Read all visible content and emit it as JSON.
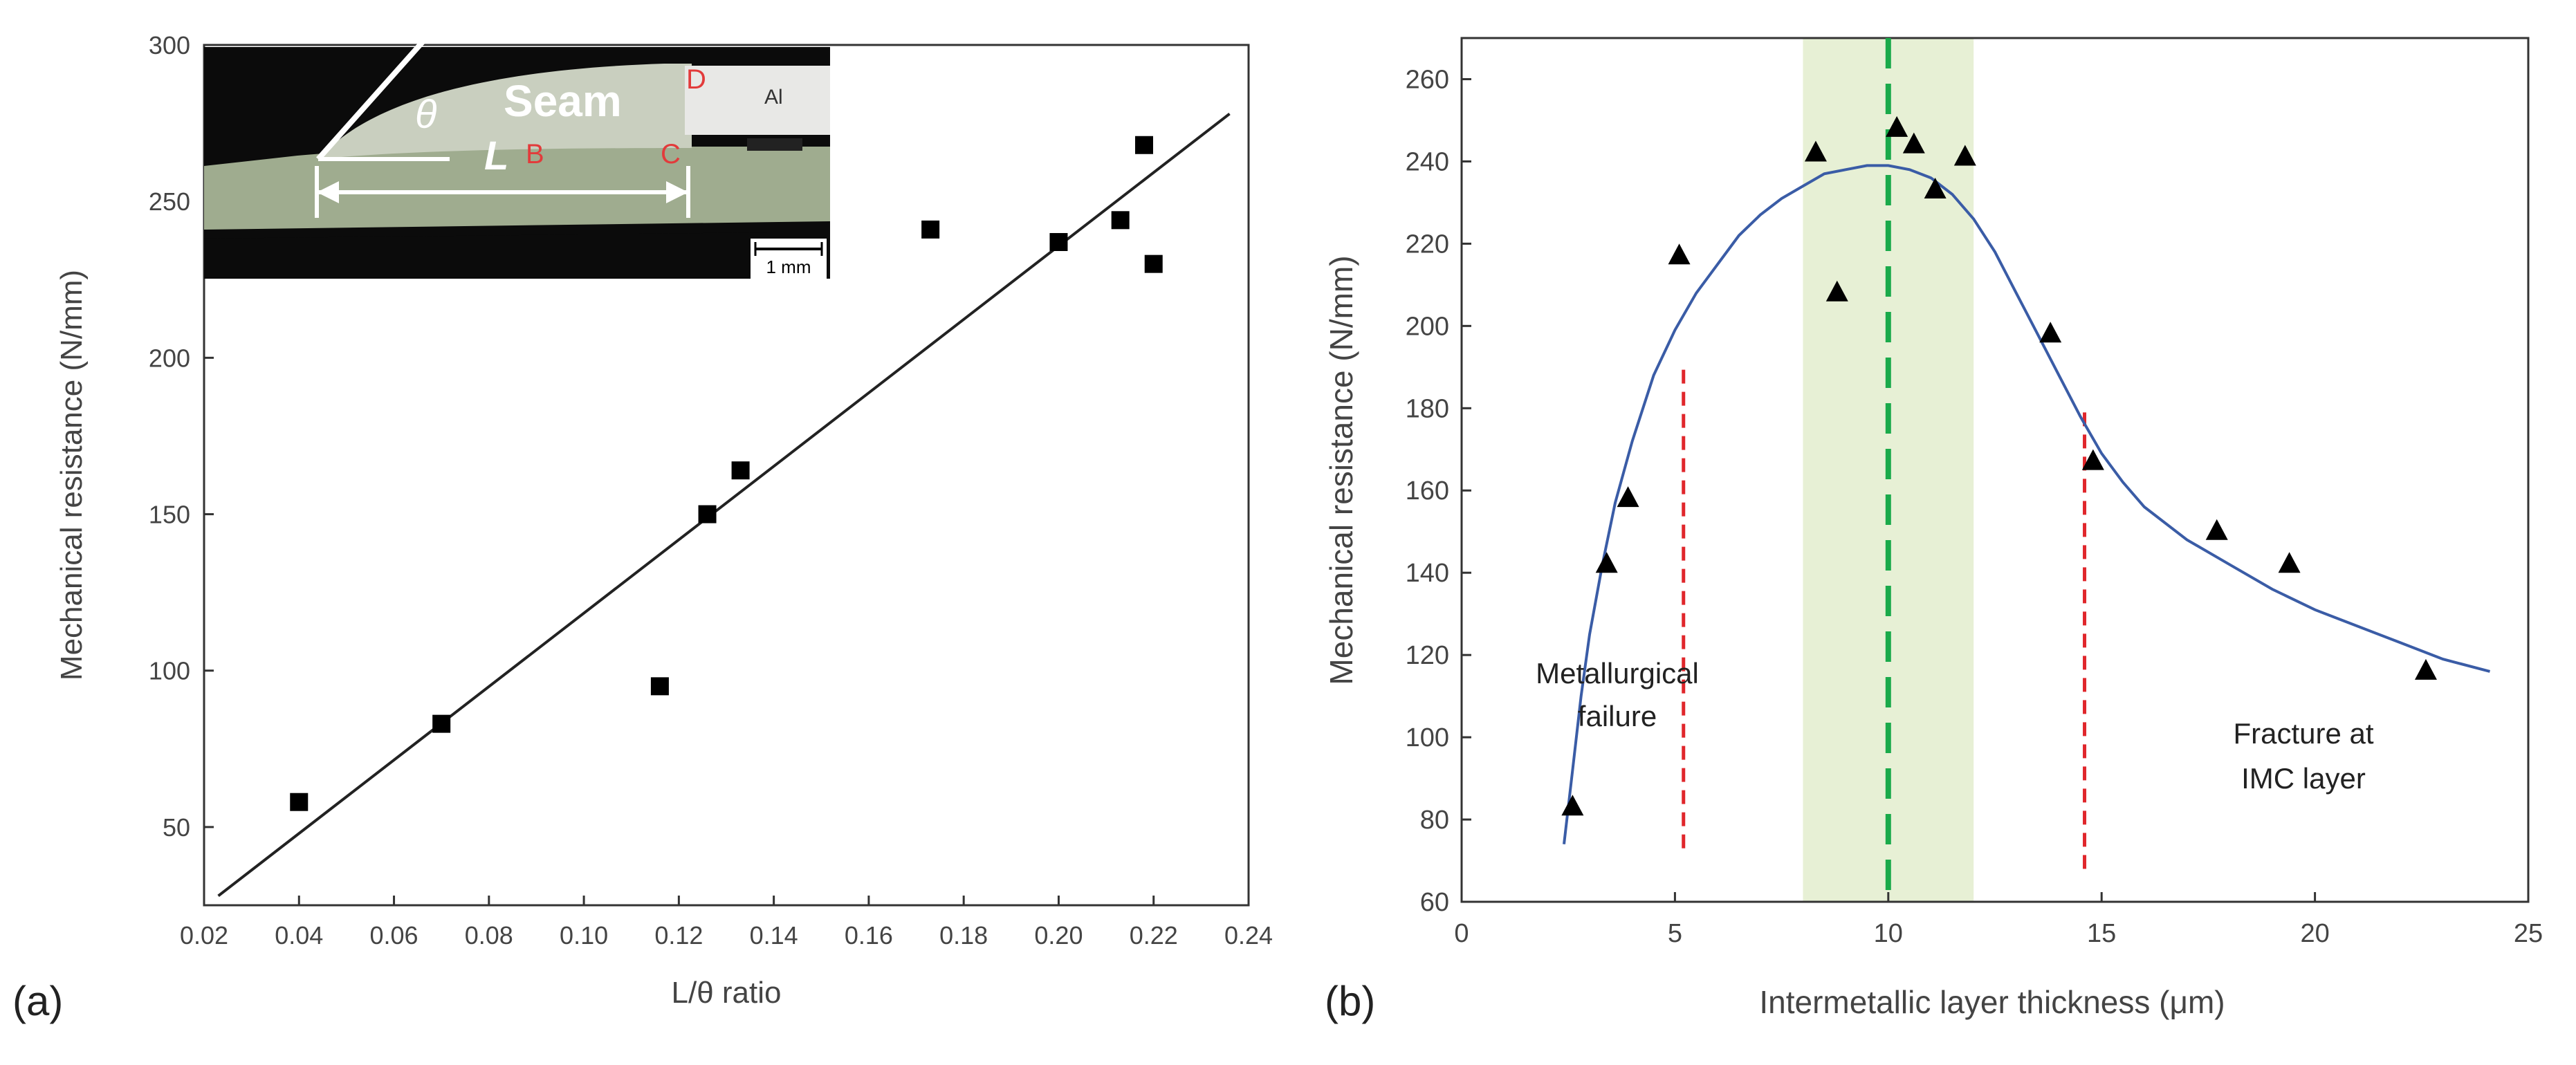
{
  "chart_data": [
    {
      "panel": "(a)",
      "type": "scatter",
      "xlabel": "L/θ ratio",
      "ylabel": "Mechanical resistance (N/mm)",
      "xlim": [
        0.02,
        0.24
      ],
      "ylim": [
        25,
        300
      ],
      "xticks": [
        "0.02",
        "0.04",
        "0.06",
        "0.08",
        "0.10",
        "0.12",
        "0.14",
        "0.16",
        "0.18",
        "0.20",
        "0.22",
        "0.24"
      ],
      "yticks": [
        "50",
        "100",
        "150",
        "200",
        "250",
        "300"
      ],
      "grid": false,
      "series": [
        {
          "marker": "square",
          "points": [
            {
              "x": 0.04,
              "y": 58
            },
            {
              "x": 0.07,
              "y": 83
            },
            {
              "x": 0.116,
              "y": 95
            },
            {
              "x": 0.126,
              "y": 150
            },
            {
              "x": 0.133,
              "y": 164
            },
            {
              "x": 0.173,
              "y": 241
            },
            {
              "x": 0.2,
              "y": 237
            },
            {
              "x": 0.213,
              "y": 244
            },
            {
              "x": 0.218,
              "y": 268
            },
            {
              "x": 0.22,
              "y": 230
            }
          ]
        }
      ],
      "fit_line": {
        "x": [
          0.023,
          0.236
        ],
        "y": [
          28,
          278
        ]
      },
      "inset": {
        "theta": "θ",
        "seam": "Seam",
        "length": "L",
        "point_b": "B",
        "point_c": "C",
        "point_d": "D",
        "al": "Al",
        "scale_bar": "1 mm"
      }
    },
    {
      "panel": "(b)",
      "type": "scatter",
      "xlabel": "Intermetallic layer thickness (μm)",
      "ylabel": "Mechanical resistance (N/mm)",
      "xlim": [
        0,
        25
      ],
      "ylim": [
        60,
        270
      ],
      "xticks": [
        "0",
        "5",
        "10",
        "15",
        "20",
        "25"
      ],
      "yticks": [
        "60",
        "80",
        "100",
        "120",
        "140",
        "160",
        "180",
        "200",
        "220",
        "240",
        "260"
      ],
      "grid": false,
      "series": [
        {
          "marker": "triangle",
          "points": [
            {
              "x": 2.6,
              "y": 83
            },
            {
              "x": 3.4,
              "y": 142
            },
            {
              "x": 3.9,
              "y": 158
            },
            {
              "x": 5.1,
              "y": 217
            },
            {
              "x": 8.3,
              "y": 242
            },
            {
              "x": 8.8,
              "y": 208
            },
            {
              "x": 10.2,
              "y": 248
            },
            {
              "x": 10.6,
              "y": 244
            },
            {
              "x": 11.1,
              "y": 233
            },
            {
              "x": 11.8,
              "y": 241
            },
            {
              "x": 13.8,
              "y": 198
            },
            {
              "x": 14.8,
              "y": 167
            },
            {
              "x": 17.7,
              "y": 150
            },
            {
              "x": 19.4,
              "y": 142
            },
            {
              "x": 22.6,
              "y": 116
            }
          ]
        }
      ],
      "fit_curve": {
        "x": [
          2.4,
          2.6,
          2.8,
          3.0,
          3.3,
          3.6,
          4.0,
          4.5,
          5.0,
          5.5,
          6.0,
          6.5,
          7.0,
          7.5,
          8.0,
          8.5,
          9.0,
          9.5,
          10.0,
          10.5,
          11.0,
          11.5,
          12.0,
          12.5,
          13.0,
          13.5,
          14.0,
          14.5,
          15.0,
          15.5,
          16.0,
          17.0,
          18.0,
          19.0,
          20.0,
          21.0,
          22.0,
          23.0,
          24.1
        ],
        "y": [
          74,
          92,
          110,
          125,
          142,
          157,
          172,
          188,
          199,
          208,
          215,
          222,
          227,
          231,
          234,
          237,
          238,
          239,
          239,
          238,
          236,
          232,
          226,
          218,
          208,
          198,
          188,
          178,
          169,
          162,
          156,
          148,
          142,
          136,
          131,
          127,
          123,
          119,
          116
        ]
      },
      "optimum_band": {
        "x0": 8.0,
        "x1": 12.0
      },
      "optimum_line_x": 10.0,
      "limit_lines": [
        {
          "x": 5.2,
          "y0": 73,
          "y1": 190
        },
        {
          "x": 14.6,
          "y0": 68,
          "y1": 181
        }
      ],
      "colors": {
        "fit": "#3a5ca6",
        "band": "#e7f0d5",
        "optimum": "#1aaa4a",
        "limit": "#e0262b"
      },
      "annotations": {
        "left_line1": "Metallurgical",
        "left_line2": "failure",
        "right_line1": "Fracture at",
        "right_line2": "IMC layer"
      }
    }
  ]
}
